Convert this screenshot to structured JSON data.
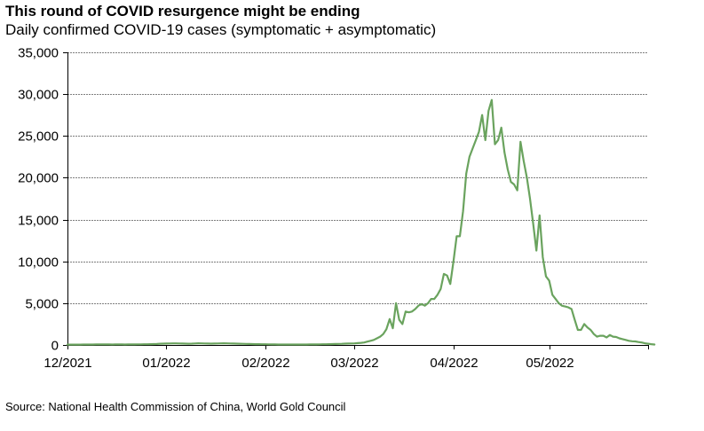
{
  "header": {
    "title": "This round of COVID resurgence might be ending",
    "subtitle": "Daily confirmed COVID-19 cases (symptomatic + asymptomatic)"
  },
  "footer": {
    "source": "Source: National Health Commission of China, World Gold Council"
  },
  "colors": {
    "line": "#6aa35e",
    "grid": "#7f7f7f",
    "axis": "#000000"
  },
  "chart_data": {
    "type": "line",
    "title": "This round of COVID resurgence might be ending",
    "subtitle": "Daily confirmed COVID-19 cases (symptomatic + asymptomatic)",
    "xlabel": "",
    "ylabel": "",
    "x_start": "2021-12-01",
    "x_unit": "day",
    "xlim_days": [
      0,
      182
    ],
    "ylim": [
      0,
      35000
    ],
    "grid": true,
    "legend": "none",
    "yticks": [
      0,
      5000,
      10000,
      15000,
      20000,
      25000,
      30000,
      35000
    ],
    "ytick_labels": [
      "0",
      "5,000",
      "10,000",
      "15,000",
      "20,000",
      "25,000",
      "30,000",
      "35,000"
    ],
    "xticks_days": [
      0,
      31,
      62,
      90,
      121,
      151,
      182
    ],
    "xtick_labels": [
      "12/2021",
      "01/2022",
      "02/2022",
      "03/2022",
      "04/2022",
      "05/2022",
      ""
    ],
    "series": [
      {
        "name": "Daily confirmed COVID-19 cases",
        "values": [
          40,
          40,
          40,
          45,
          45,
          50,
          50,
          55,
          55,
          60,
          60,
          65,
          70,
          60,
          55,
          60,
          65,
          60,
          55,
          60,
          60,
          65,
          70,
          75,
          80,
          90,
          100,
          110,
          120,
          150,
          160,
          170,
          180,
          190,
          190,
          180,
          170,
          160,
          150,
          160,
          180,
          200,
          190,
          180,
          170,
          160,
          170,
          180,
          190,
          200,
          190,
          180,
          170,
          160,
          150,
          140,
          130,
          120,
          110,
          100,
          100,
          90,
          80,
          70,
          60,
          60,
          55,
          55,
          50,
          50,
          50,
          50,
          50,
          50,
          55,
          55,
          60,
          60,
          65,
          70,
          80,
          90,
          100,
          110,
          120,
          130,
          140,
          160,
          170,
          180,
          190,
          220,
          250,
          300,
          400,
          500,
          600,
          800,
          1000,
          1300,
          1900,
          3100,
          2000,
          5000,
          3000,
          2500,
          4000,
          3900,
          4000,
          4300,
          4700,
          4900,
          4700,
          5000,
          5500,
          5500,
          6000,
          6700,
          8500,
          8300,
          7300,
          10000,
          13000,
          13000,
          16000,
          20500,
          22500,
          23500,
          24500,
          25500,
          27500,
          24500,
          28000,
          29300,
          24000,
          24500,
          26000,
          23000,
          21000,
          19500,
          19200,
          18500,
          24300,
          22000,
          20000,
          17500,
          14500,
          11300,
          15500,
          10500,
          8200,
          7700,
          6000,
          5500,
          5000,
          4700,
          4600,
          4500,
          4300,
          3000,
          1800,
          1800,
          2500,
          2100,
          1800,
          1300,
          1000,
          1100,
          1100,
          900,
          1200,
          1000,
          950,
          800,
          700,
          600,
          500,
          450,
          420,
          350,
          300,
          200,
          150,
          100,
          50
        ]
      }
    ]
  }
}
